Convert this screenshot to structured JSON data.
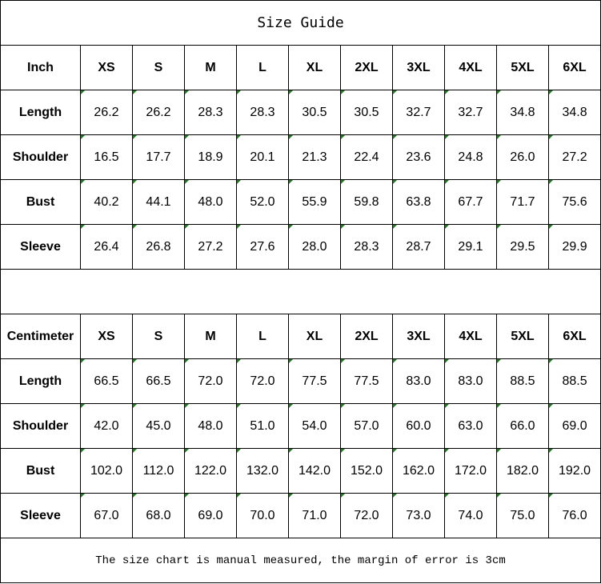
{
  "title": "Size Guide",
  "sizes": [
    "XS",
    "S",
    "M",
    "L",
    "XL",
    "2XL",
    "3XL",
    "4XL",
    "5XL",
    "6XL"
  ],
  "tables": [
    {
      "unit": "Inch",
      "rows": [
        {
          "label": "Length",
          "values": [
            "26.2",
            "26.2",
            "28.3",
            "28.3",
            "30.5",
            "30.5",
            "32.7",
            "32.7",
            "34.8",
            "34.8"
          ]
        },
        {
          "label": "Shoulder",
          "values": [
            "16.5",
            "17.7",
            "18.9",
            "20.1",
            "21.3",
            "22.4",
            "23.6",
            "24.8",
            "26.0",
            "27.2"
          ]
        },
        {
          "label": "Bust",
          "values": [
            "40.2",
            "44.1",
            "48.0",
            "52.0",
            "55.9",
            "59.8",
            "63.8",
            "67.7",
            "71.7",
            "75.6"
          ]
        },
        {
          "label": "Sleeve",
          "values": [
            "26.4",
            "26.8",
            "27.2",
            "27.6",
            "28.0",
            "28.3",
            "28.7",
            "29.1",
            "29.5",
            "29.9"
          ]
        }
      ]
    },
    {
      "unit": "Centimeter",
      "rows": [
        {
          "label": "Length",
          "values": [
            "66.5",
            "66.5",
            "72.0",
            "72.0",
            "77.5",
            "77.5",
            "83.0",
            "83.0",
            "88.5",
            "88.5"
          ]
        },
        {
          "label": "Shoulder",
          "values": [
            "42.0",
            "45.0",
            "48.0",
            "51.0",
            "54.0",
            "57.0",
            "60.0",
            "63.0",
            "66.0",
            "69.0"
          ]
        },
        {
          "label": "Bust",
          "values": [
            "102.0",
            "112.0",
            "122.0",
            "132.0",
            "142.0",
            "152.0",
            "162.0",
            "172.0",
            "182.0",
            "192.0"
          ]
        },
        {
          "label": "Sleeve",
          "values": [
            "67.0",
            "68.0",
            "69.0",
            "70.0",
            "71.0",
            "72.0",
            "73.0",
            "74.0",
            "75.0",
            "76.0"
          ]
        }
      ]
    }
  ],
  "note": "The size chart is manual measured, the margin of error is 3cm",
  "colors": {
    "marker": "#1a7a1a",
    "border": "#000000"
  }
}
